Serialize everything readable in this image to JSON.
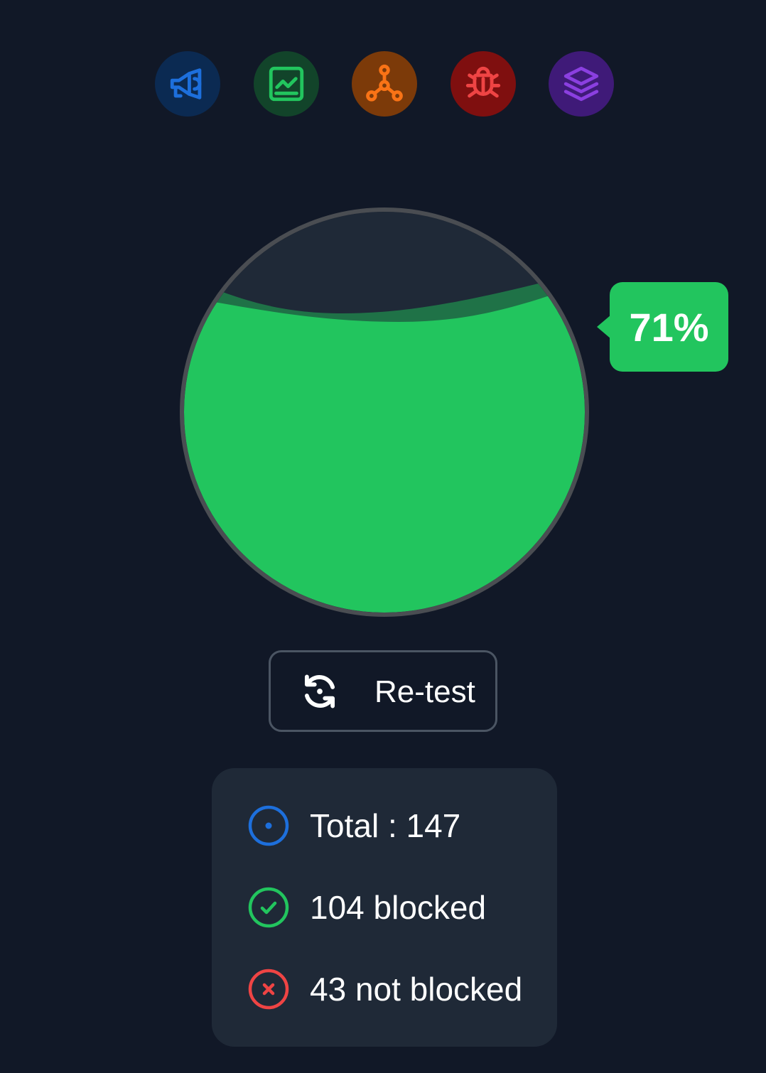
{
  "colors": {
    "background": "#111827",
    "card": "#1f2937",
    "success": "#22c55e",
    "danger": "#ef4444",
    "info": "#1d6fdc",
    "border": "#4b5563"
  },
  "categories": [
    {
      "icon": "megaphone-icon",
      "color": "#1d6fdc",
      "bg": "#0b2a52"
    },
    {
      "icon": "chart-icon",
      "color": "#22c55e",
      "bg": "#12442a"
    },
    {
      "icon": "network-icon",
      "color": "#f97316",
      "bg": "#7c3a09"
    },
    {
      "icon": "bug-icon",
      "color": "#ef4444",
      "bg": "#7f0f0f"
    },
    {
      "icon": "layers-icon",
      "color": "#8b3fe0",
      "bg": "#3f1a78"
    }
  ],
  "gauge": {
    "percent": 71,
    "percent_label": "71%"
  },
  "retest": {
    "label": "Re-test",
    "icon": "refresh-icon"
  },
  "stats": {
    "total": "Total : 147",
    "blocked": "104 blocked",
    "not_blocked": "43 not blocked",
    "total_icon": "target-icon",
    "blocked_icon": "check-circle-icon",
    "not_blocked_icon": "x-circle-icon"
  }
}
